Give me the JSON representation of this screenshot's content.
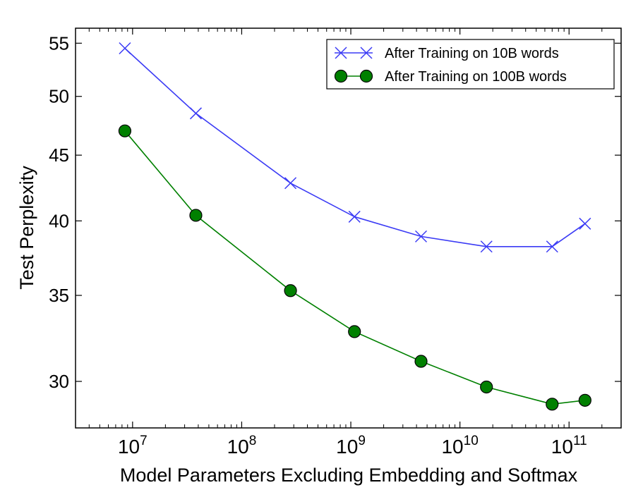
{
  "chart_data": {
    "type": "line",
    "title": "",
    "xlabel": "Model Parameters Excluding Embedding and Softmax",
    "ylabel": "Test Perplexity",
    "xscale": "log",
    "yscale": "log",
    "xlim": [
      3000000,
      300000000000
    ],
    "ylim": [
      27.6,
      56.5
    ],
    "x_ticks": [
      {
        "value": 10000000,
        "base": "10",
        "exp": "7"
      },
      {
        "value": 100000000,
        "base": "10",
        "exp": "8"
      },
      {
        "value": 1000000000,
        "base": "10",
        "exp": "9"
      },
      {
        "value": 10000000000,
        "base": "10",
        "exp": "10"
      },
      {
        "value": 100000000000,
        "base": "10",
        "exp": "11"
      }
    ],
    "y_ticks": [
      30,
      35,
      40,
      45,
      50,
      55
    ],
    "grid": false,
    "legend_position": "top-right",
    "series": [
      {
        "name": "After Training on 10B words",
        "color": "#3b3bf5",
        "marker": "x",
        "x": [
          8500000,
          38000000,
          280000000,
          1080000000,
          4400000000,
          17500000000,
          70000000000,
          140000000000
        ],
        "y": [
          54.5,
          48.5,
          42.8,
          40.3,
          38.9,
          38.2,
          38.2,
          39.8
        ]
      },
      {
        "name": "After Training on 100B words",
        "color": "#008000",
        "marker": "o",
        "x": [
          8500000,
          38000000,
          280000000,
          1080000000,
          4400000000,
          17500000000,
          70000000000,
          140000000000
        ],
        "y": [
          47.0,
          40.4,
          35.3,
          32.8,
          31.1,
          29.7,
          28.8,
          29.0
        ]
      }
    ]
  }
}
